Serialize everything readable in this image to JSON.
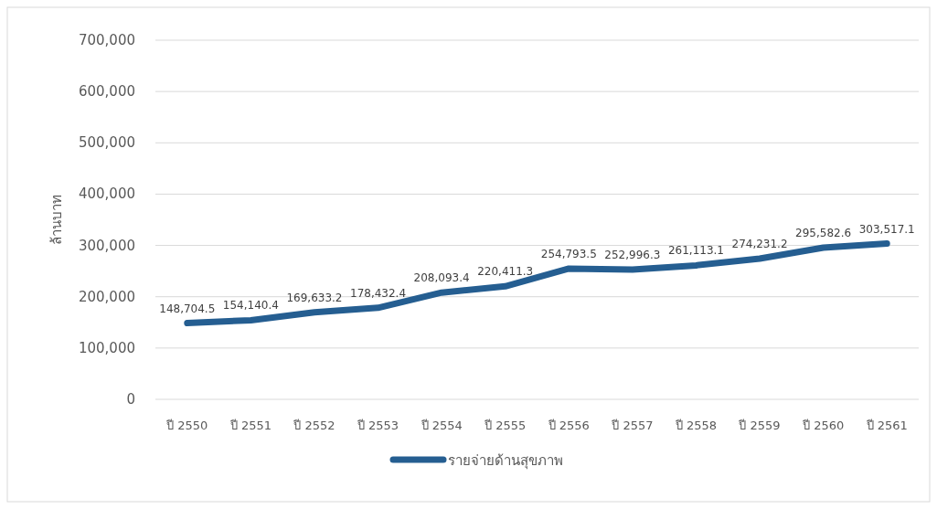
{
  "chart_data": {
    "type": "line",
    "ylabel": "ล้านบาท",
    "categories": [
      "ปี 2550",
      "ปี 2551",
      "ปี 2552",
      "ปี 2553",
      "ปี 2554",
      "ปี 2555",
      "ปี 2556",
      "ปี 2557",
      "ปี 2558",
      "ปี 2559",
      "ปี 2560",
      "ปี 2561"
    ],
    "series": [
      {
        "name": "รายจ่ายด้านสุขภาพ",
        "color": "#255e91",
        "values": [
          148704.5,
          154140.4,
          169633.2,
          178432.4,
          208093.4,
          220411.3,
          254793.5,
          252996.3,
          261113.1,
          274231.2,
          295582.6,
          303517.1
        ],
        "value_labels": [
          "148,704.5",
          "154,140.4",
          "169,633.2",
          "178,432.4",
          "208,093.4",
          "220,411.3",
          "254,793.5",
          "252,996.3",
          "261,113.1",
          "274,231.2",
          "295,582.6",
          "303,517.1"
        ]
      }
    ],
    "ylim": [
      0,
      700000
    ],
    "yticks": [
      {
        "value": 0,
        "label": "0"
      },
      {
        "value": 100000,
        "label": "100,000"
      },
      {
        "value": 200000,
        "label": "200,000"
      },
      {
        "value": 300000,
        "label": "300,000"
      },
      {
        "value": 400000,
        "label": "400,000"
      },
      {
        "value": 500000,
        "label": "500,000"
      },
      {
        "value": 600000,
        "label": "600,000"
      },
      {
        "value": 700000,
        "label": "700,000"
      }
    ],
    "grid": "y",
    "legend": "bottom",
    "marker": "none",
    "line_style": "solid"
  }
}
